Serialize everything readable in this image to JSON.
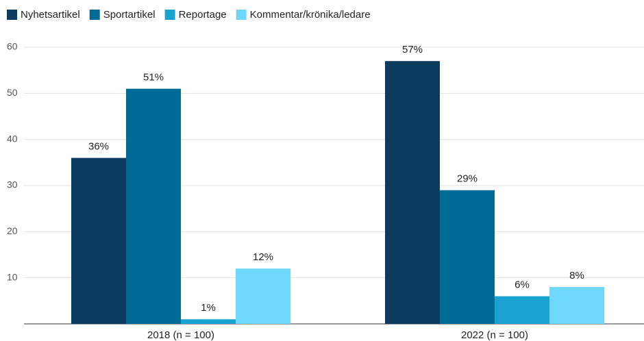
{
  "chart_data": {
    "type": "bar",
    "categories": [
      "2018 (n = 100)",
      "2022 (n = 100)"
    ],
    "series": [
      {
        "name": "Nyhetsartikel",
        "color": "#0b3c5d",
        "values": [
          36,
          57
        ],
        "value_labels": [
          "36%",
          "57%"
        ]
      },
      {
        "name": "Sportartikel",
        "color": "#016b97",
        "values": [
          51,
          29
        ],
        "value_labels": [
          "51%",
          "29%"
        ]
      },
      {
        "name": "Reportage",
        "color": "#1aa3d1",
        "values": [
          1,
          6
        ],
        "value_labels": [
          "1%",
          "6%"
        ]
      },
      {
        "name": "Kommentar/krönika/ledare",
        "color": "#6dd7fc",
        "values": [
          12,
          8
        ],
        "value_labels": [
          "12%",
          "8%"
        ]
      }
    ],
    "ylim": [
      0,
      60
    ],
    "yticks": [
      10,
      20,
      30,
      40,
      50,
      60
    ],
    "grid": true,
    "legend": "top-left"
  }
}
